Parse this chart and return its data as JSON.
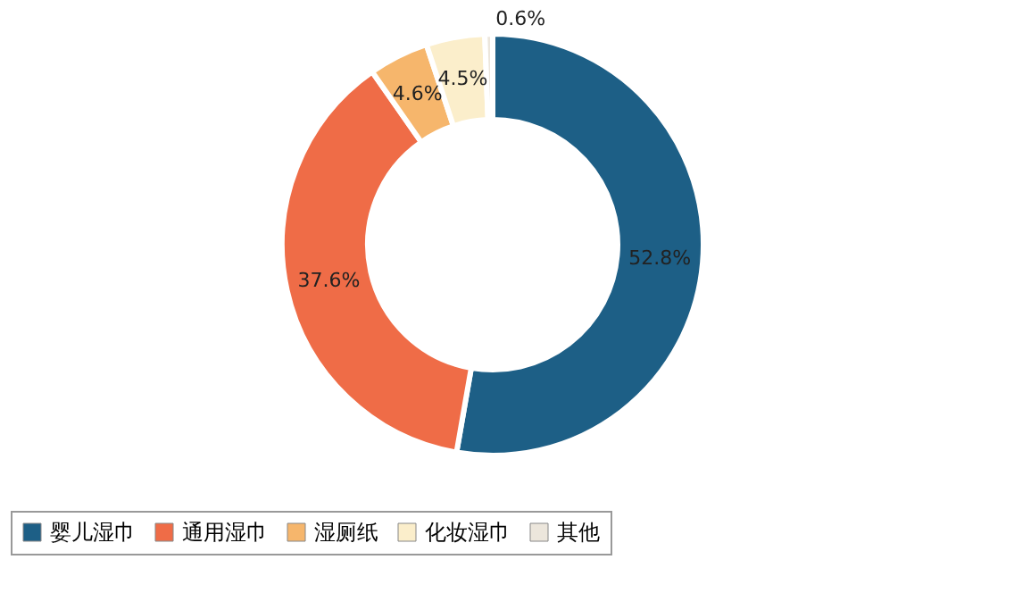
{
  "chart_data": {
    "type": "donut",
    "categories": [
      "婴儿湿巾",
      "通用湿巾",
      "湿厕纸",
      "化妆湿巾",
      "其他"
    ],
    "values": [
      52.8,
      37.6,
      4.6,
      4.5,
      0.6
    ],
    "colors": [
      "#1d5f86",
      "#ef6c47",
      "#f6b66c",
      "#fbeecb",
      "#ece6dc"
    ],
    "value_labels": [
      "52.8%",
      "37.6%",
      "4.6%",
      "4.5%",
      "0.6%"
    ],
    "legend": "bottom"
  }
}
